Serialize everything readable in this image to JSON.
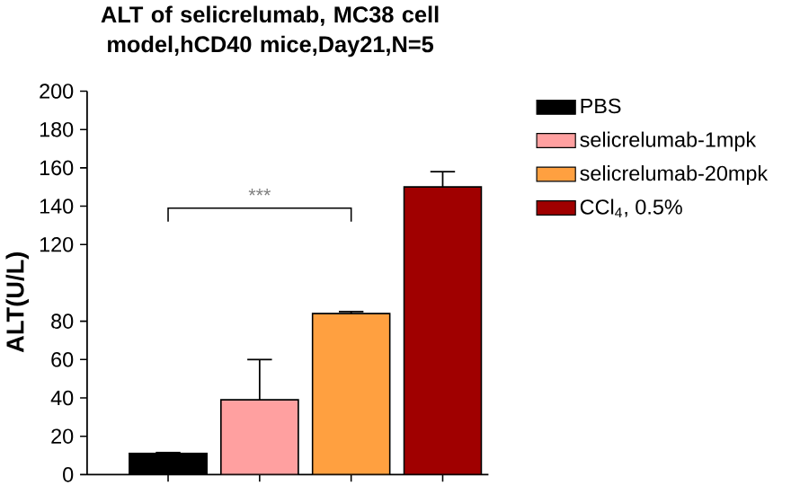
{
  "chart_data": {
    "type": "bar",
    "title": "ALT of selicrelumab, MC38 cell model,hCD40 mice,Day21,N=5",
    "ylabel": "ALT(U/L)",
    "categories": [
      null,
      null,
      null,
      null
    ],
    "series": [
      {
        "name": "PBS",
        "color": "#000000",
        "values": [
          11,
          null,
          null,
          null
        ],
        "errors": [
          0.5,
          null,
          null,
          null
        ]
      },
      {
        "name": "selicrelumab-1mpk",
        "color": "#ffa0a0",
        "values": [
          null,
          39,
          null,
          null
        ],
        "errors": [
          null,
          21,
          null,
          null
        ]
      },
      {
        "name": "selicrelumab-20mpk",
        "color": "#ffa040",
        "values": [
          null,
          null,
          84,
          null
        ],
        "errors": [
          null,
          null,
          1,
          null
        ]
      },
      {
        "name": "CCl$_{4}$, 0.5%",
        "color": "#a00000",
        "values": [
          null,
          null,
          null,
          150
        ],
        "errors": [
          null,
          null,
          null,
          8
        ]
      }
    ],
    "ylim": [
      0,
      200
    ],
    "yticks": [
      0,
      20,
      40,
      60,
      80,
      120,
      140,
      160,
      180,
      200
    ],
    "tick_labels": "y",
    "legend": "top right",
    "annotations": [
      "***"
    ]
  }
}
